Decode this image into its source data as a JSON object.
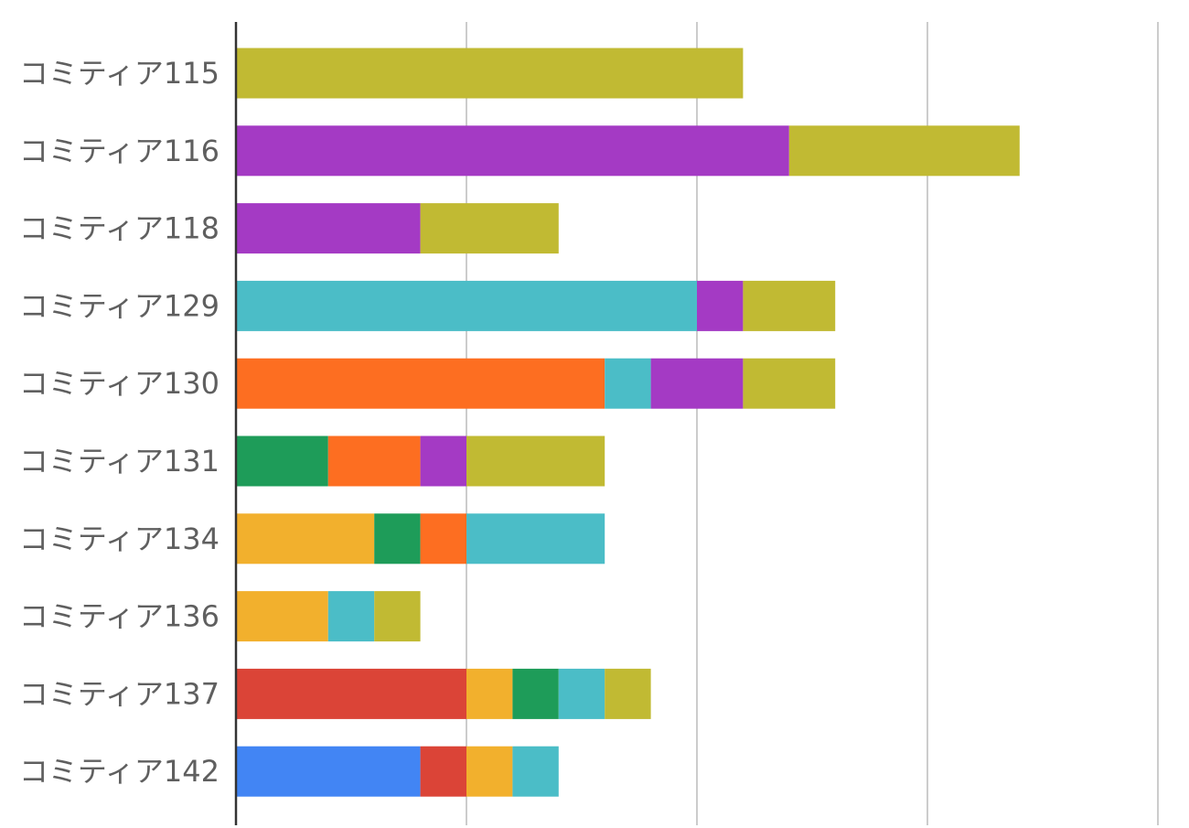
{
  "chart_data": {
    "type": "bar",
    "orientation": "horizontal",
    "stacked": true,
    "title": "",
    "xlabel": "",
    "ylabel": "",
    "xlim": [
      0,
      20
    ],
    "grid": true,
    "legend": "none",
    "categories": [
      "コミティア115",
      "コミティア116",
      "コミティア118",
      "コミティア129",
      "コミティア130",
      "コミティア131",
      "コミティア134",
      "コミティア136",
      "コミティア137",
      "コミティア142"
    ],
    "series": [
      {
        "color": "#4285f4",
        "values": [
          0,
          0,
          0,
          0,
          0,
          0,
          0,
          0,
          0,
          4
        ]
      },
      {
        "color": "#db4437",
        "values": [
          0,
          0,
          0,
          0,
          0,
          0,
          0,
          0,
          5,
          1
        ]
      },
      {
        "color": "#f2b02d",
        "values": [
          0,
          0,
          0,
          0,
          0,
          0,
          3,
          2,
          1,
          1
        ]
      },
      {
        "color": "#1e9c59",
        "values": [
          0,
          0,
          0,
          0,
          0,
          2,
          1,
          0,
          1,
          0
        ]
      },
      {
        "color": "#fd6e21",
        "values": [
          0,
          0,
          0,
          0,
          8,
          2,
          1,
          0,
          0,
          0
        ]
      },
      {
        "color": "#4bbdc7",
        "values": [
          0,
          0,
          0,
          10,
          1,
          0,
          3,
          1,
          1,
          1
        ]
      },
      {
        "color": "#a43ac4",
        "values": [
          0,
          12,
          4,
          1,
          2,
          1,
          0,
          0,
          0,
          0
        ]
      },
      {
        "color": "#c1ba33",
        "values": [
          11,
          5,
          3,
          2,
          2,
          3,
          0,
          1,
          1,
          0
        ]
      }
    ]
  }
}
